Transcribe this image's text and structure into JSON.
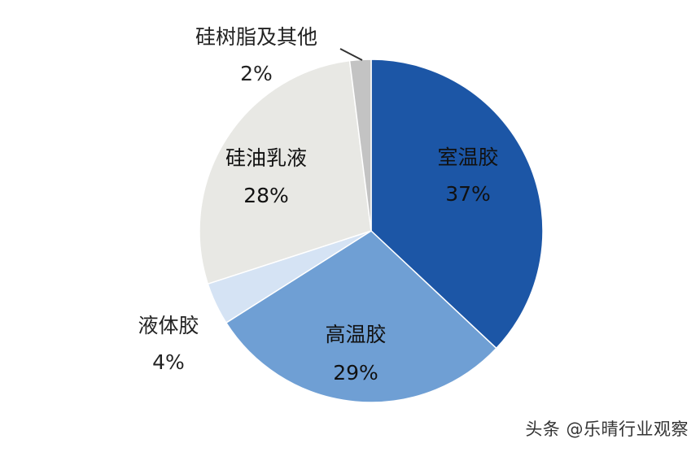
{
  "chart_data": {
    "type": "pie",
    "slices": [
      {
        "label": "室温胶",
        "value": 37,
        "percent_label": "37%",
        "color": "#1c56a6",
        "text_color": "#111111"
      },
      {
        "label": "高温胶",
        "value": 29,
        "percent_label": "29%",
        "color": "#6f9fd4",
        "text_color": "#111111"
      },
      {
        "label": "液体胶",
        "value": 4,
        "percent_label": "4%",
        "color": "#d5e3f4",
        "text_color": "#222222"
      },
      {
        "label": "硅油乳液",
        "value": 28,
        "percent_label": "28%",
        "color": "#e8e8e4",
        "text_color": "#111111"
      },
      {
        "label": "硅树脂及其他",
        "value": 2,
        "percent_label": "2%",
        "color": "#c3c3c3",
        "text_color": "#222222"
      }
    ]
  },
  "watermark": {
    "text": "头条 @乐晴行业观察"
  }
}
